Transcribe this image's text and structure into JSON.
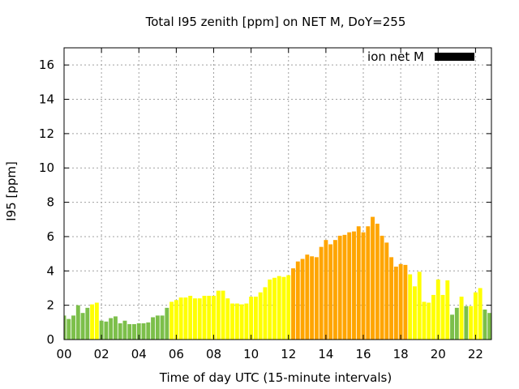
{
  "chart_data": {
    "type": "bar",
    "title": "Total I95 zenith [ppm] on NET M, DoY=255",
    "xlabel": "Time of day UTC (15-minute intervals)",
    "ylabel": "I95 [ppm]",
    "ylim": [
      0,
      17
    ],
    "xlim": [
      0,
      22.75
    ],
    "grid": true,
    "legend_placement": "top-right",
    "legend": [
      {
        "name": "ion net M",
        "color": "#000000"
      }
    ],
    "x_ticks": [
      "00",
      "02",
      "04",
      "06",
      "08",
      "10",
      "12",
      "14",
      "16",
      "18",
      "20",
      "22"
    ],
    "y_ticks": [
      "0",
      "2",
      "4",
      "6",
      "8",
      "10",
      "12",
      "14",
      "16"
    ],
    "colors": {
      "green": "#7cbf4a",
      "yellow": "#ffff00",
      "orange": "#ffa500"
    },
    "bars": [
      {
        "t": 0.0,
        "v": 1.4,
        "c": "green"
      },
      {
        "t": 0.25,
        "v": 1.2,
        "c": "green"
      },
      {
        "t": 0.5,
        "v": 1.4,
        "c": "green"
      },
      {
        "t": 0.75,
        "v": 2.0,
        "c": "green"
      },
      {
        "t": 1.0,
        "v": 1.55,
        "c": "green"
      },
      {
        "t": 1.25,
        "v": 1.85,
        "c": "green"
      },
      {
        "t": 1.5,
        "v": 2.05,
        "c": "yellow"
      },
      {
        "t": 1.75,
        "v": 2.15,
        "c": "yellow"
      },
      {
        "t": 2.0,
        "v": 1.1,
        "c": "green"
      },
      {
        "t": 2.25,
        "v": 1.05,
        "c": "green"
      },
      {
        "t": 2.5,
        "v": 1.25,
        "c": "green"
      },
      {
        "t": 2.75,
        "v": 1.35,
        "c": "green"
      },
      {
        "t": 3.0,
        "v": 0.95,
        "c": "green"
      },
      {
        "t": 3.25,
        "v": 1.1,
        "c": "green"
      },
      {
        "t": 3.5,
        "v": 0.9,
        "c": "green"
      },
      {
        "t": 3.75,
        "v": 0.9,
        "c": "green"
      },
      {
        "t": 4.0,
        "v": 0.95,
        "c": "green"
      },
      {
        "t": 4.25,
        "v": 0.95,
        "c": "green"
      },
      {
        "t": 4.5,
        "v": 1.0,
        "c": "green"
      },
      {
        "t": 4.75,
        "v": 1.3,
        "c": "green"
      },
      {
        "t": 5.0,
        "v": 1.4,
        "c": "green"
      },
      {
        "t": 5.25,
        "v": 1.4,
        "c": "green"
      },
      {
        "t": 5.5,
        "v": 1.85,
        "c": "green"
      },
      {
        "t": 5.75,
        "v": 2.2,
        "c": "yellow"
      },
      {
        "t": 6.0,
        "v": 2.3,
        "c": "yellow"
      },
      {
        "t": 6.25,
        "v": 2.45,
        "c": "yellow"
      },
      {
        "t": 6.5,
        "v": 2.45,
        "c": "yellow"
      },
      {
        "t": 6.75,
        "v": 2.55,
        "c": "yellow"
      },
      {
        "t": 7.0,
        "v": 2.4,
        "c": "yellow"
      },
      {
        "t": 7.25,
        "v": 2.4,
        "c": "yellow"
      },
      {
        "t": 7.5,
        "v": 2.55,
        "c": "yellow"
      },
      {
        "t": 7.75,
        "v": 2.55,
        "c": "yellow"
      },
      {
        "t": 8.0,
        "v": 2.55,
        "c": "yellow"
      },
      {
        "t": 8.25,
        "v": 2.85,
        "c": "yellow"
      },
      {
        "t": 8.5,
        "v": 2.85,
        "c": "yellow"
      },
      {
        "t": 8.75,
        "v": 2.4,
        "c": "yellow"
      },
      {
        "t": 9.0,
        "v": 2.1,
        "c": "yellow"
      },
      {
        "t": 9.25,
        "v": 2.1,
        "c": "yellow"
      },
      {
        "t": 9.5,
        "v": 2.05,
        "c": "yellow"
      },
      {
        "t": 9.75,
        "v": 2.1,
        "c": "yellow"
      },
      {
        "t": 10.0,
        "v": 2.5,
        "c": "yellow"
      },
      {
        "t": 10.25,
        "v": 2.5,
        "c": "yellow"
      },
      {
        "t": 10.5,
        "v": 2.75,
        "c": "yellow"
      },
      {
        "t": 10.75,
        "v": 3.05,
        "c": "yellow"
      },
      {
        "t": 11.0,
        "v": 3.5,
        "c": "yellow"
      },
      {
        "t": 11.25,
        "v": 3.6,
        "c": "yellow"
      },
      {
        "t": 11.5,
        "v": 3.7,
        "c": "yellow"
      },
      {
        "t": 11.75,
        "v": 3.65,
        "c": "yellow"
      },
      {
        "t": 12.0,
        "v": 3.75,
        "c": "yellow"
      },
      {
        "t": 12.25,
        "v": 4.15,
        "c": "orange"
      },
      {
        "t": 12.5,
        "v": 4.55,
        "c": "orange"
      },
      {
        "t": 12.75,
        "v": 4.7,
        "c": "orange"
      },
      {
        "t": 13.0,
        "v": 4.95,
        "c": "orange"
      },
      {
        "t": 13.25,
        "v": 4.85,
        "c": "orange"
      },
      {
        "t": 13.5,
        "v": 4.8,
        "c": "orange"
      },
      {
        "t": 13.75,
        "v": 5.4,
        "c": "orange"
      },
      {
        "t": 14.0,
        "v": 5.8,
        "c": "orange"
      },
      {
        "t": 14.25,
        "v": 5.55,
        "c": "orange"
      },
      {
        "t": 14.5,
        "v": 5.8,
        "c": "orange"
      },
      {
        "t": 14.75,
        "v": 6.05,
        "c": "orange"
      },
      {
        "t": 15.0,
        "v": 6.1,
        "c": "orange"
      },
      {
        "t": 15.25,
        "v": 6.25,
        "c": "orange"
      },
      {
        "t": 15.5,
        "v": 6.3,
        "c": "orange"
      },
      {
        "t": 15.75,
        "v": 6.6,
        "c": "orange"
      },
      {
        "t": 16.0,
        "v": 6.25,
        "c": "orange"
      },
      {
        "t": 16.25,
        "v": 6.6,
        "c": "orange"
      },
      {
        "t": 16.5,
        "v": 7.15,
        "c": "orange"
      },
      {
        "t": 16.75,
        "v": 6.75,
        "c": "orange"
      },
      {
        "t": 17.0,
        "v": 6.05,
        "c": "orange"
      },
      {
        "t": 17.25,
        "v": 5.65,
        "c": "orange"
      },
      {
        "t": 17.5,
        "v": 4.8,
        "c": "orange"
      },
      {
        "t": 17.75,
        "v": 4.25,
        "c": "orange"
      },
      {
        "t": 18.0,
        "v": 4.4,
        "c": "orange"
      },
      {
        "t": 18.25,
        "v": 4.35,
        "c": "orange"
      },
      {
        "t": 18.5,
        "v": 3.8,
        "c": "yellow"
      },
      {
        "t": 18.75,
        "v": 3.1,
        "c": "yellow"
      },
      {
        "t": 19.0,
        "v": 3.95,
        "c": "yellow"
      },
      {
        "t": 19.25,
        "v": 2.2,
        "c": "yellow"
      },
      {
        "t": 19.5,
        "v": 2.15,
        "c": "yellow"
      },
      {
        "t": 19.75,
        "v": 2.6,
        "c": "yellow"
      },
      {
        "t": 20.0,
        "v": 3.5,
        "c": "yellow"
      },
      {
        "t": 20.25,
        "v": 2.6,
        "c": "yellow"
      },
      {
        "t": 20.5,
        "v": 3.45,
        "c": "yellow"
      },
      {
        "t": 20.75,
        "v": 1.45,
        "c": "green"
      },
      {
        "t": 21.0,
        "v": 1.85,
        "c": "green"
      },
      {
        "t": 21.25,
        "v": 2.5,
        "c": "yellow"
      },
      {
        "t": 21.5,
        "v": 1.95,
        "c": "green"
      },
      {
        "t": 21.75,
        "v": 1.95,
        "c": "yellow"
      },
      {
        "t": 22.0,
        "v": 2.75,
        "c": "yellow"
      },
      {
        "t": 22.25,
        "v": 3.0,
        "c": "yellow"
      },
      {
        "t": 22.5,
        "v": 1.75,
        "c": "green"
      },
      {
        "t": 22.75,
        "v": 1.55,
        "c": "green"
      }
    ]
  }
}
